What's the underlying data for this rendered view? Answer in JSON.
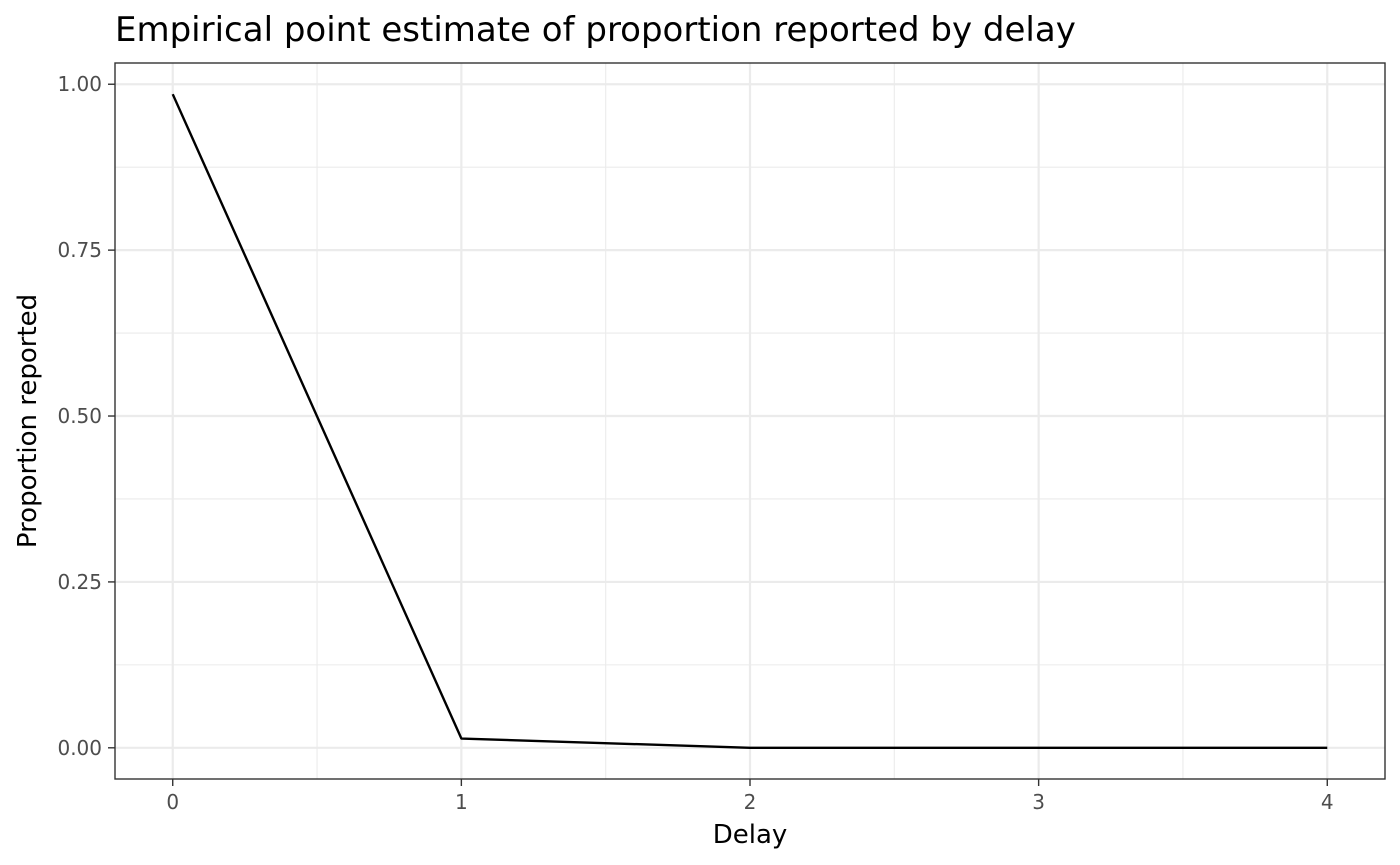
{
  "chart_data": {
    "type": "line",
    "title": "Empirical point estimate of proportion reported by delay",
    "xlabel": "Delay",
    "ylabel": "Proportion reported",
    "x": [
      0,
      1,
      2,
      3,
      4
    ],
    "series": [
      {
        "values": [
          0.985,
          0.014,
          0.0,
          0.0,
          0.0
        ],
        "color": "#000000"
      }
    ],
    "xlim": [
      -0.2,
      4.2
    ],
    "ylim": [
      -0.047,
      1.032
    ],
    "x_ticks": [
      0,
      1,
      2,
      3,
      4
    ],
    "x_tick_labels": [
      "0",
      "1",
      "2",
      "3",
      "4"
    ],
    "y_ticks": [
      0,
      0.25,
      0.5,
      0.75,
      1.0
    ],
    "y_tick_labels": [
      "0.00",
      "0.25",
      "0.50",
      "0.75",
      "1.00"
    ],
    "x_minor_ticks": [
      0.5,
      1.5,
      2.5,
      3.5
    ],
    "y_minor_ticks": [
      0.125,
      0.375,
      0.625,
      0.875
    ],
    "grid": true,
    "legend": "none",
    "colors": {
      "grid": "#ebebeb",
      "border": "#333333",
      "tick_text": "#4d4d4d",
      "background": "#ffffff"
    }
  }
}
